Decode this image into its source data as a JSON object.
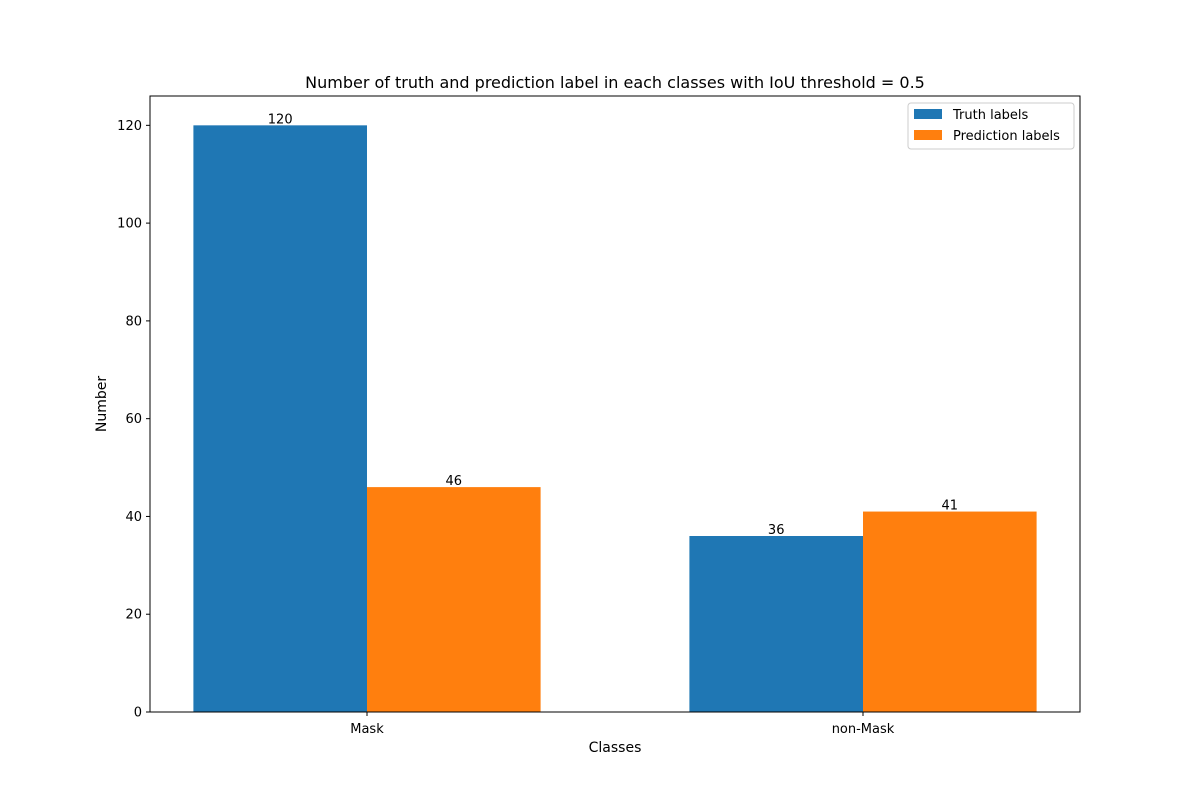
{
  "chart_data": {
    "type": "bar",
    "title": "Number of truth and prediction label in each classes with IoU threshold = 0.5",
    "xlabel": "Classes",
    "ylabel": "Number",
    "categories": [
      "Mask",
      "non-Mask"
    ],
    "series": [
      {
        "name": "Truth labels",
        "values": [
          120,
          36
        ],
        "color": "#1f77b4"
      },
      {
        "name": "Prediction labels",
        "values": [
          46,
          41
        ],
        "color": "#ff7f0e"
      }
    ],
    "ylim": [
      0,
      126
    ],
    "yticks": [
      0,
      20,
      40,
      60,
      80,
      100,
      120
    ],
    "grid": false,
    "legend_position": "top-right"
  }
}
